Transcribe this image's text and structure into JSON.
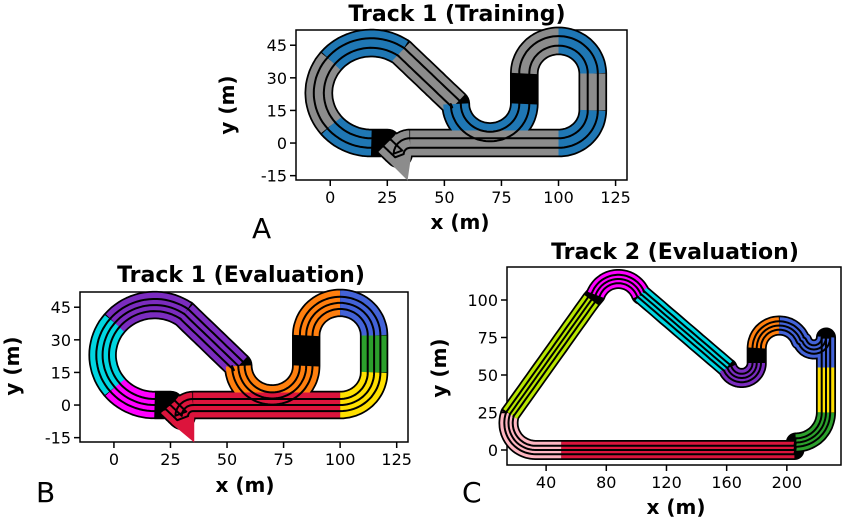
{
  "chart_data": [
    {
      "panel": "A",
      "type": "track-map",
      "title": "Track 1 (Training)",
      "xlabel": "x (m)",
      "ylabel": "y (m)",
      "xlim": [
        -15,
        130
      ],
      "ylim": [
        -17,
        52
      ],
      "xticks": [
        0,
        25,
        50,
        75,
        100,
        125
      ],
      "yticks": [
        -15,
        0,
        15,
        30,
        45
      ],
      "gray_color": "#8c8c8c",
      "highlight_color": "#1f77b4",
      "segments": [
        {
          "type": "line",
          "from": [
            30,
            0
          ],
          "to": [
            100,
            0
          ]
        },
        {
          "type": "arc",
          "c": [
            100,
            15
          ],
          "r": 15,
          "a0": -90,
          "a1": 0,
          "color": "highlight"
        },
        {
          "type": "line",
          "from": [
            115,
            15
          ],
          "to": [
            115,
            30
          ]
        },
        {
          "type": "arc",
          "c": [
            100,
            30
          ],
          "r": 15,
          "a0": 0,
          "a1": 90,
          "color": "highlight"
        },
        {
          "type": "arc",
          "c": [
            100,
            30
          ],
          "r": 15,
          "a0": 90,
          "a1": 180
        },
        {
          "type": "arc",
          "c": [
            70,
            15
          ],
          "r": 15,
          "a0": 0,
          "a1": -180,
          "color": "highlight"
        },
        {
          "type": "line",
          "from": [
            55,
            15
          ],
          "to": [
            30,
            36
          ]
        },
        {
          "type": "arc",
          "c": [
            18,
            23
          ],
          "r": 23,
          "a0": 60,
          "a1": 120,
          "color": "highlight"
        },
        {
          "type": "arc",
          "c": [
            18,
            23
          ],
          "r": 23,
          "a0": 120,
          "a1": 240
        },
        {
          "type": "arc",
          "c": [
            18,
            23
          ],
          "r": 23,
          "a0": 240,
          "a1": 300,
          "color": "highlight"
        },
        {
          "type": "arc",
          "c": [
            30,
            0
          ],
          "r": 0,
          "a0": 0,
          "a1": 0
        }
      ]
    },
    {
      "panel": "B",
      "type": "track-map",
      "title": "Track 1 (Evaluation)",
      "xlabel": "x (m)",
      "ylabel": "y (m)",
      "xlim": [
        -15,
        130
      ],
      "ylim": [
        -17,
        52
      ],
      "xticks": [
        0,
        25,
        50,
        75,
        100,
        125
      ],
      "yticks": [
        -15,
        0,
        15,
        30,
        45
      ],
      "colors": [
        "#ff00ff",
        "#dc143c",
        "#ffe000",
        "#2ca02c",
        "#4363d8",
        "#ff7f0e",
        "#7b2cbf",
        "#00d5e0"
      ]
    },
    {
      "panel": "C",
      "type": "track-map",
      "title": "Track 2 (Evaluation)",
      "xlabel": "x (m)",
      "ylabel": "y (m)",
      "xlim": [
        14,
        236
      ],
      "ylim": [
        -10,
        122
      ],
      "xticks": [
        40,
        80,
        120,
        160,
        200
      ],
      "yticks": [
        0,
        25,
        50,
        75,
        100
      ],
      "colors": [
        "#ffb6c1",
        "#dc143c",
        "#2ca02c",
        "#ffe000",
        "#4363d8",
        "#ff7f0e",
        "#7b2cbf",
        "#00d5e0",
        "#ff00ff",
        "#b8e600"
      ]
    }
  ]
}
